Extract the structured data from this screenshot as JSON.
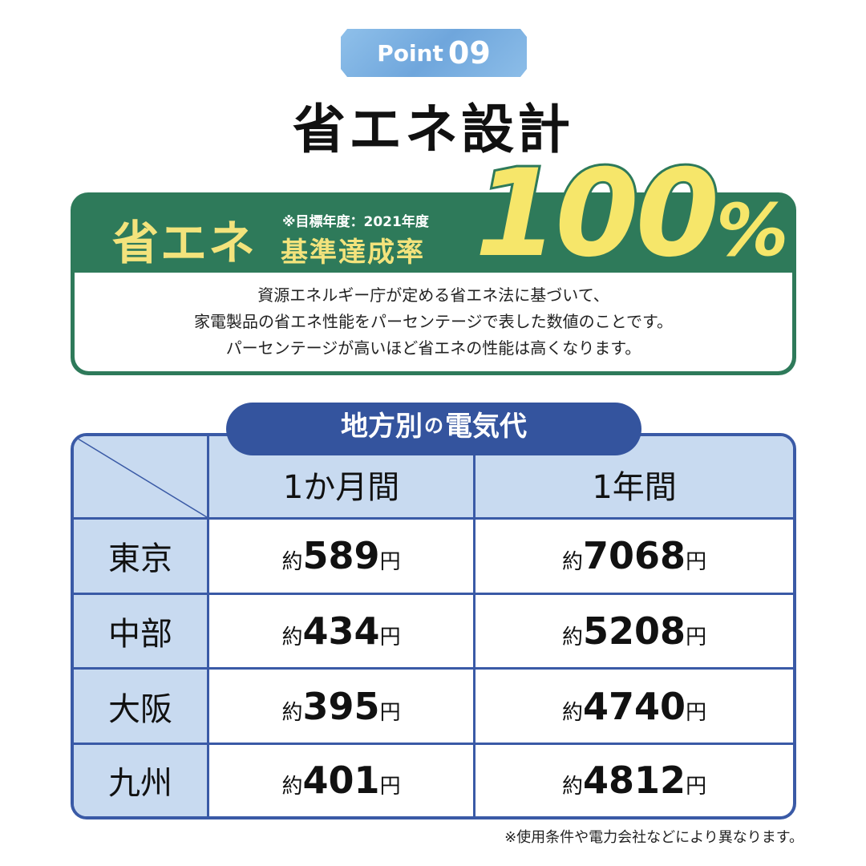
{
  "badge": {
    "label": "Point",
    "number": "09"
  },
  "title": "省エネ設計",
  "banner": {
    "label_main": "省エネ",
    "note": "※目標年度：2021年度",
    "label_sub": "基準達成率",
    "value": "100",
    "unit": "%",
    "description": [
      "資源エネルギー庁が定める省エネ法に基づいて、",
      "家電製品の省エネ性能をパーセンテージで表した数値のことです。",
      "パーセンテージが高いほど省エネの性能は高くなります。"
    ]
  },
  "table": {
    "title_pre": "地方別",
    "title_no": "の",
    "title_post": "電気代",
    "columns": [
      "1か月間",
      "1年間"
    ],
    "prefix": "約",
    "unit": "円",
    "rows": [
      {
        "region": "東京",
        "month": "589",
        "year": "7068"
      },
      {
        "region": "中部",
        "month": "434",
        "year": "5208"
      },
      {
        "region": "大阪",
        "month": "395",
        "year": "4740"
      },
      {
        "region": "九州",
        "month": "401",
        "year": "4812"
      }
    ]
  },
  "footnote": "※使用条件や電力会社などにより異なります。",
  "colors": {
    "green": "#2e7a5a",
    "yellow": "#f3e37c",
    "blue": "#3a5aa6",
    "light_blue": "#c8daf0",
    "badge": "#7fb3e3"
  }
}
